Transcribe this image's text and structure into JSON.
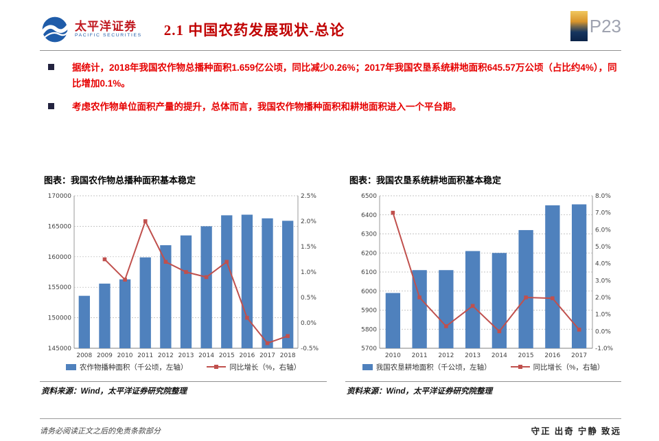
{
  "header": {
    "brand_cn": "太平洋证券",
    "brand_en": "PACIFIC SECURITIES",
    "title": "2.1 中国农药发展现状-总论",
    "page_number": "P23"
  },
  "bullets": [
    "据统计，2018年我国农作物总播种面积1.659亿公顷，同比减少0.26%；2017年我国农垦系统耕地面积645.57万公顷（占比约4%），同比增加0.1%。",
    "考虑农作物单位面积产量的提升，总体而言，我国农作物播种面积和耕地面积进入一个平台期。"
  ],
  "chart_data": [
    {
      "type": "bar",
      "title": "图表：我国农作物总播种面积基本稳定",
      "categories": [
        "2008",
        "2009",
        "2010",
        "2011",
        "2012",
        "2013",
        "2014",
        "2015",
        "2016",
        "2017",
        "2018"
      ],
      "series": [
        {
          "name": "农作物播种面积（千公顷，左轴）",
          "type": "bar",
          "axis": "left",
          "color": "#4F81BD",
          "values": [
            153600,
            155600,
            156300,
            159900,
            161900,
            163500,
            165000,
            166800,
            166900,
            166300,
            165900
          ]
        },
        {
          "name": "同比增长（%，右轴）",
          "type": "line",
          "axis": "right",
          "color": "#C0504D",
          "values": [
            null,
            1.25,
            0.85,
            2.0,
            1.2,
            1.0,
            0.9,
            1.2,
            0.1,
            -0.4,
            -0.26
          ]
        }
      ],
      "left_axis": {
        "min": 145000,
        "max": 170000,
        "step": 5000
      },
      "right_axis": {
        "min": -0.5,
        "max": 2.5,
        "step": 0.5
      },
      "grid": true,
      "legend_position": "bottom",
      "source": "资料来源：Wind，太平洋证券研究院整理"
    },
    {
      "type": "bar",
      "title": "图表：我国农垦系统耕地面积基本稳定",
      "categories": [
        "2010",
        "2011",
        "2012",
        "2013",
        "2014",
        "2015",
        "2016",
        "2017"
      ],
      "series": [
        {
          "name": "我国农垦耕地面积（千公顷，左轴）",
          "type": "bar",
          "axis": "left",
          "color": "#4F81BD",
          "values": [
            5990,
            6110,
            6110,
            6210,
            6200,
            6320,
            6450,
            6455
          ]
        },
        {
          "name": "同比增长（%，右轴）",
          "type": "line",
          "axis": "right",
          "color": "#C0504D",
          "values": [
            7.0,
            2.0,
            0.3,
            1.5,
            0.0,
            2.0,
            1.95,
            0.1
          ]
        }
      ],
      "left_axis": {
        "min": 5700,
        "max": 6500,
        "step": 100
      },
      "right_axis": {
        "min": -1.0,
        "max": 8.0,
        "step": 1.0
      },
      "grid": true,
      "legend_position": "bottom",
      "source": "资料来源：Wind，太平洋证券研究院整理"
    }
  ],
  "footer": {
    "left": "请务必阅读正文之后的免责条款部分",
    "right": "守正 出奇 宁静 致远"
  },
  "colors": {
    "title_red": "#c00000",
    "bullet_red": "#e60000",
    "bar_blue": "#4F81BD",
    "line_red": "#C0504D"
  }
}
